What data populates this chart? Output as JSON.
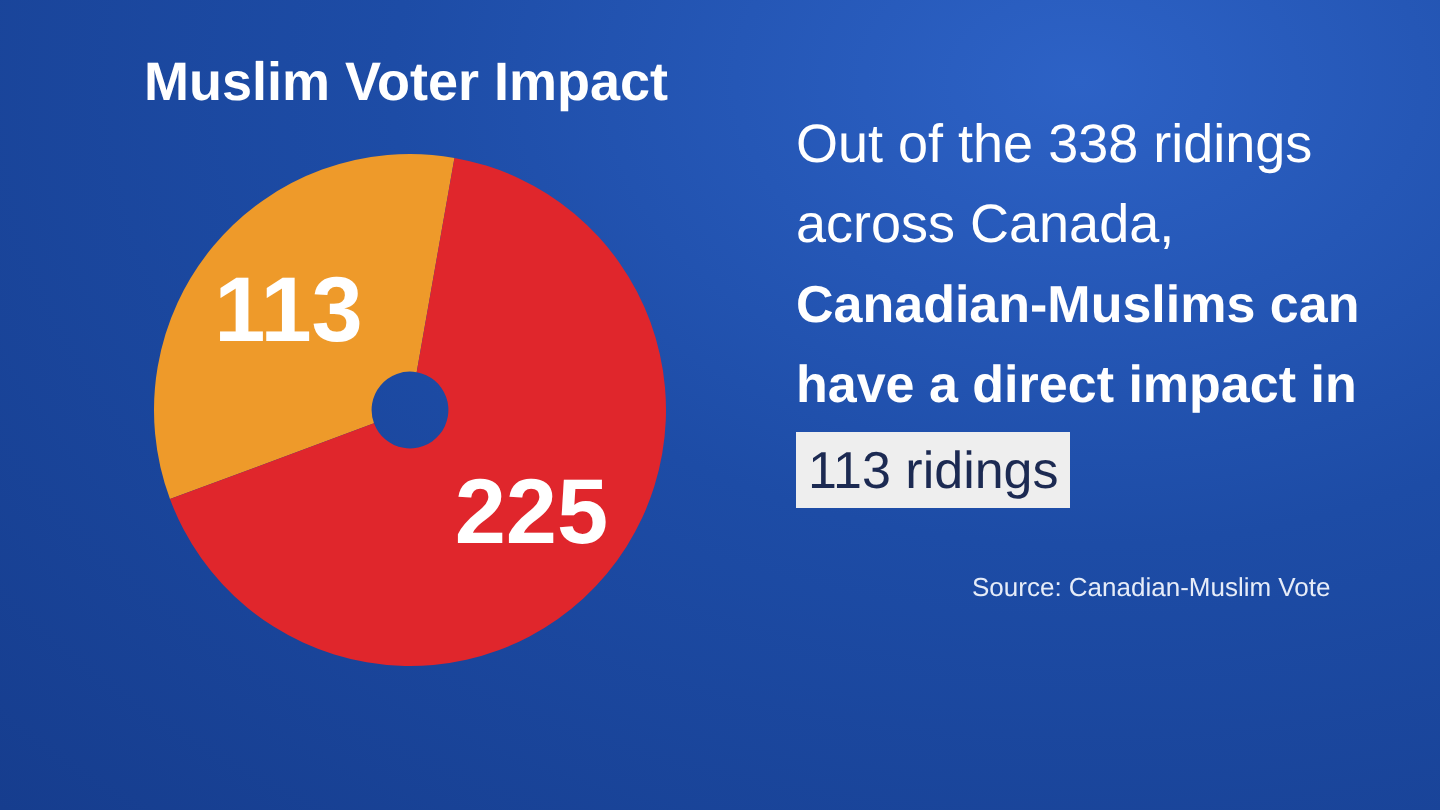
{
  "chart_data": {
    "type": "donut",
    "title": "Muslim Voter Impact",
    "categories": [
      null,
      null
    ],
    "values": [
      113,
      225
    ],
    "colors": [
      "#ee9a2a",
      "#e0262c"
    ],
    "data_labels": true,
    "annotations": [
      "Out of the 338 ridings across Canada,",
      "Canadian-Muslims can have a direct impact in",
      "113 ridings",
      "Source: Canadian-Muslim Vote"
    ]
  }
}
